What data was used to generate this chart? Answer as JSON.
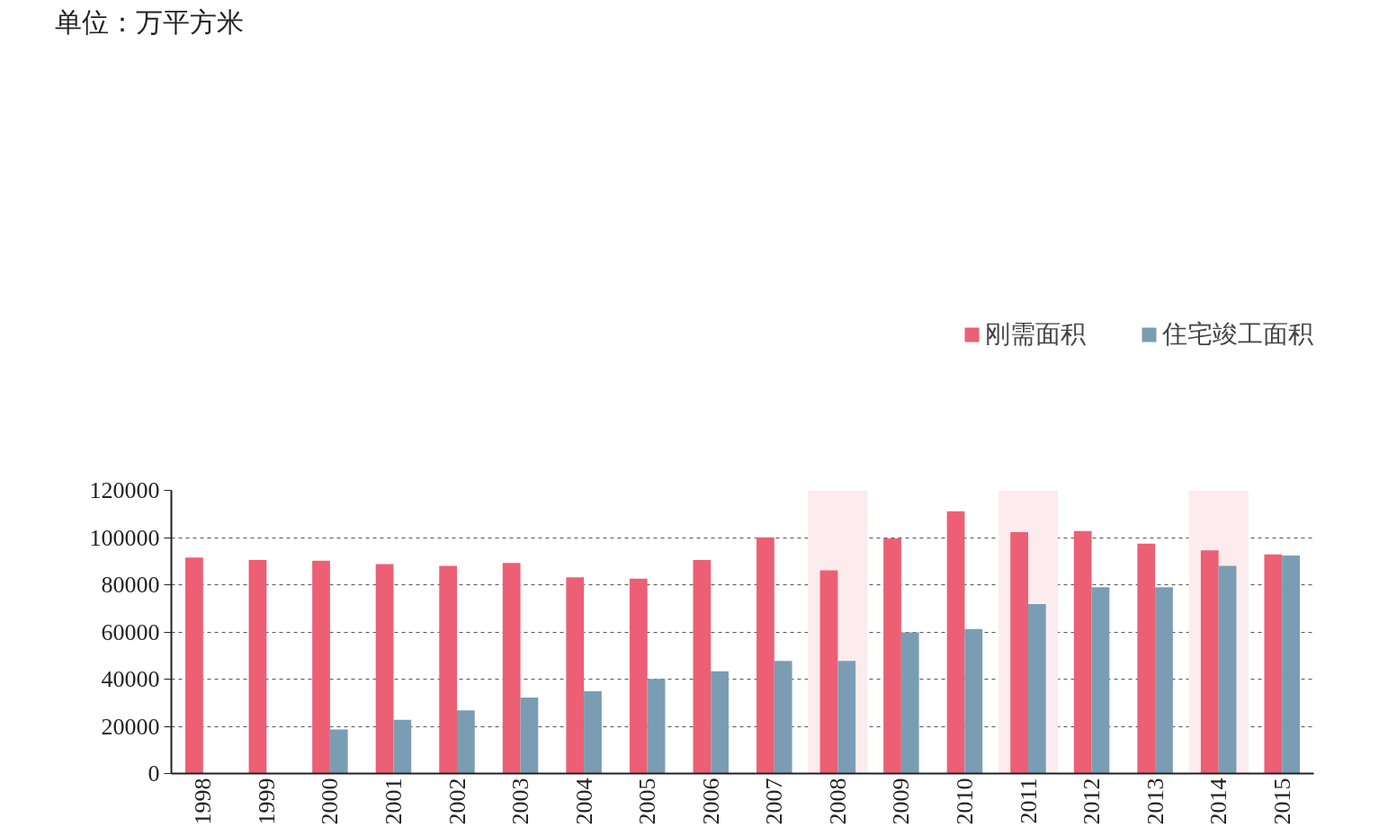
{
  "chart_data": {
    "type": "bar",
    "categories": [
      "1998",
      "1999",
      "2000",
      "2001",
      "2002",
      "2003",
      "2004",
      "2005",
      "2006",
      "2007",
      "2008",
      "2009",
      "2010",
      "2011",
      "2012",
      "2013",
      "2014",
      "2015"
    ],
    "series": [
      {
        "name": "刚需面积",
        "color": "#ec5f75",
        "values": [
          91500,
          90500,
          90200,
          88800,
          88000,
          89200,
          83100,
          82600,
          90500,
          100100,
          86100,
          99600,
          111100,
          102300,
          102800,
          97400,
          94600,
          92900
        ]
      },
      {
        "name": "住宅竣工面积",
        "color": "#7a9db3",
        "values": [
          null,
          null,
          18700,
          22800,
          26800,
          32200,
          34900,
          40100,
          43300,
          47700,
          47700,
          59800,
          61200,
          71800,
          79000,
          79000,
          88000,
          92400
        ]
      }
    ],
    "ylim": [
      0,
      120000
    ],
    "yticks": [
      0,
      20000,
      40000,
      60000,
      80000,
      100000,
      120000
    ],
    "grid": "y",
    "legend": "top",
    "bands": [
      {
        "axis": "x",
        "from": "2008",
        "to": "2008",
        "color": "#fcecee"
      },
      {
        "axis": "x",
        "from": "2011",
        "to": "2011",
        "color": "#fcecee"
      },
      {
        "axis": "x",
        "from": "2014",
        "to": "2014",
        "color": "#fcecee"
      }
    ],
    "annotations": [
      "单位：万平方米"
    ]
  }
}
